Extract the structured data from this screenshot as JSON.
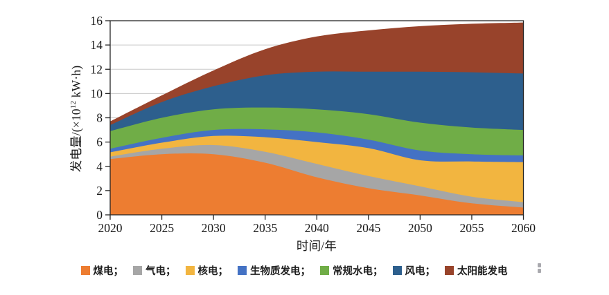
{
  "figure": {
    "background": "#FFFFFF",
    "y_axis_label": "发电量/(×10¹² kW·h)",
    "y_axis_label_parts": {
      "prefix": "发电量/(×10",
      "sup": "12",
      "suffix": " kW·h)"
    },
    "x_axis_label": "时间/年"
  },
  "legend": {
    "labels": [
      "煤电；",
      "气电；",
      "核电；",
      "生物质发电；",
      "常规水电；",
      "风电；",
      "太阳能发电"
    ]
  },
  "palette": {
    "coal": "#ED7D31",
    "gas": "#A6A6A6",
    "nuclear": "#F2B540",
    "biomass": "#4472C4",
    "hydro": "#70AD47",
    "wind": "#2D5F8D",
    "solar": "#98432B",
    "gridline": "#C8C8C8",
    "axis": "#262626",
    "tick_text": "#1a1a1a"
  },
  "chart_data": {
    "type": "area",
    "stacked": true,
    "title": "",
    "xlabel": "时间/年",
    "ylabel": "发电量/(×10¹² kW·h)",
    "x": [
      2020,
      2025,
      2030,
      2035,
      2040,
      2045,
      2050,
      2055,
      2060
    ],
    "xlim": [
      2020,
      2060
    ],
    "ylim": [
      0,
      16
    ],
    "xticks": [
      2020,
      2025,
      2030,
      2035,
      2040,
      2045,
      2050,
      2055,
      2060
    ],
    "yticks": [
      0,
      2,
      4,
      6,
      8,
      10,
      12,
      14,
      16
    ],
    "grid": "horizontal",
    "legend_position": "bottom",
    "units": "×10¹² kW·h",
    "series": [
      {
        "key": "coal",
        "name": "煤电",
        "color": "#ED7D31",
        "values": [
          4.6,
          5.0,
          5.0,
          4.3,
          3.1,
          2.2,
          1.6,
          0.95,
          0.6
        ]
      },
      {
        "key": "gas",
        "name": "气电",
        "color": "#A6A6A6",
        "values": [
          0.2,
          0.45,
          0.75,
          0.9,
          1.1,
          1.0,
          0.75,
          0.55,
          0.45
        ]
      },
      {
        "key": "nuclear",
        "name": "核电",
        "color": "#F2B540",
        "values": [
          0.35,
          0.5,
          0.75,
          1.2,
          1.8,
          2.3,
          2.15,
          2.9,
          3.3
        ]
      },
      {
        "key": "biomass",
        "name": "生物质发电",
        "color": "#4472C4",
        "values": [
          0.3,
          0.4,
          0.5,
          0.65,
          0.8,
          0.7,
          0.8,
          0.6,
          0.55
        ]
      },
      {
        "key": "hydro",
        "name": "常规水电",
        "color": "#70AD47",
        "values": [
          1.45,
          1.65,
          1.7,
          1.8,
          1.9,
          2.1,
          2.3,
          2.2,
          2.1
        ]
      },
      {
        "key": "wind",
        "name": "风电",
        "color": "#2D5F8D",
        "values": [
          0.5,
          1.3,
          1.9,
          2.65,
          3.1,
          3.5,
          4.2,
          4.55,
          4.65
        ]
      },
      {
        "key": "solar",
        "name": "太阳能发电",
        "color": "#98432B",
        "values": [
          0.3,
          0.55,
          1.3,
          2.15,
          2.9,
          3.4,
          3.75,
          4.0,
          4.2
        ]
      }
    ]
  }
}
